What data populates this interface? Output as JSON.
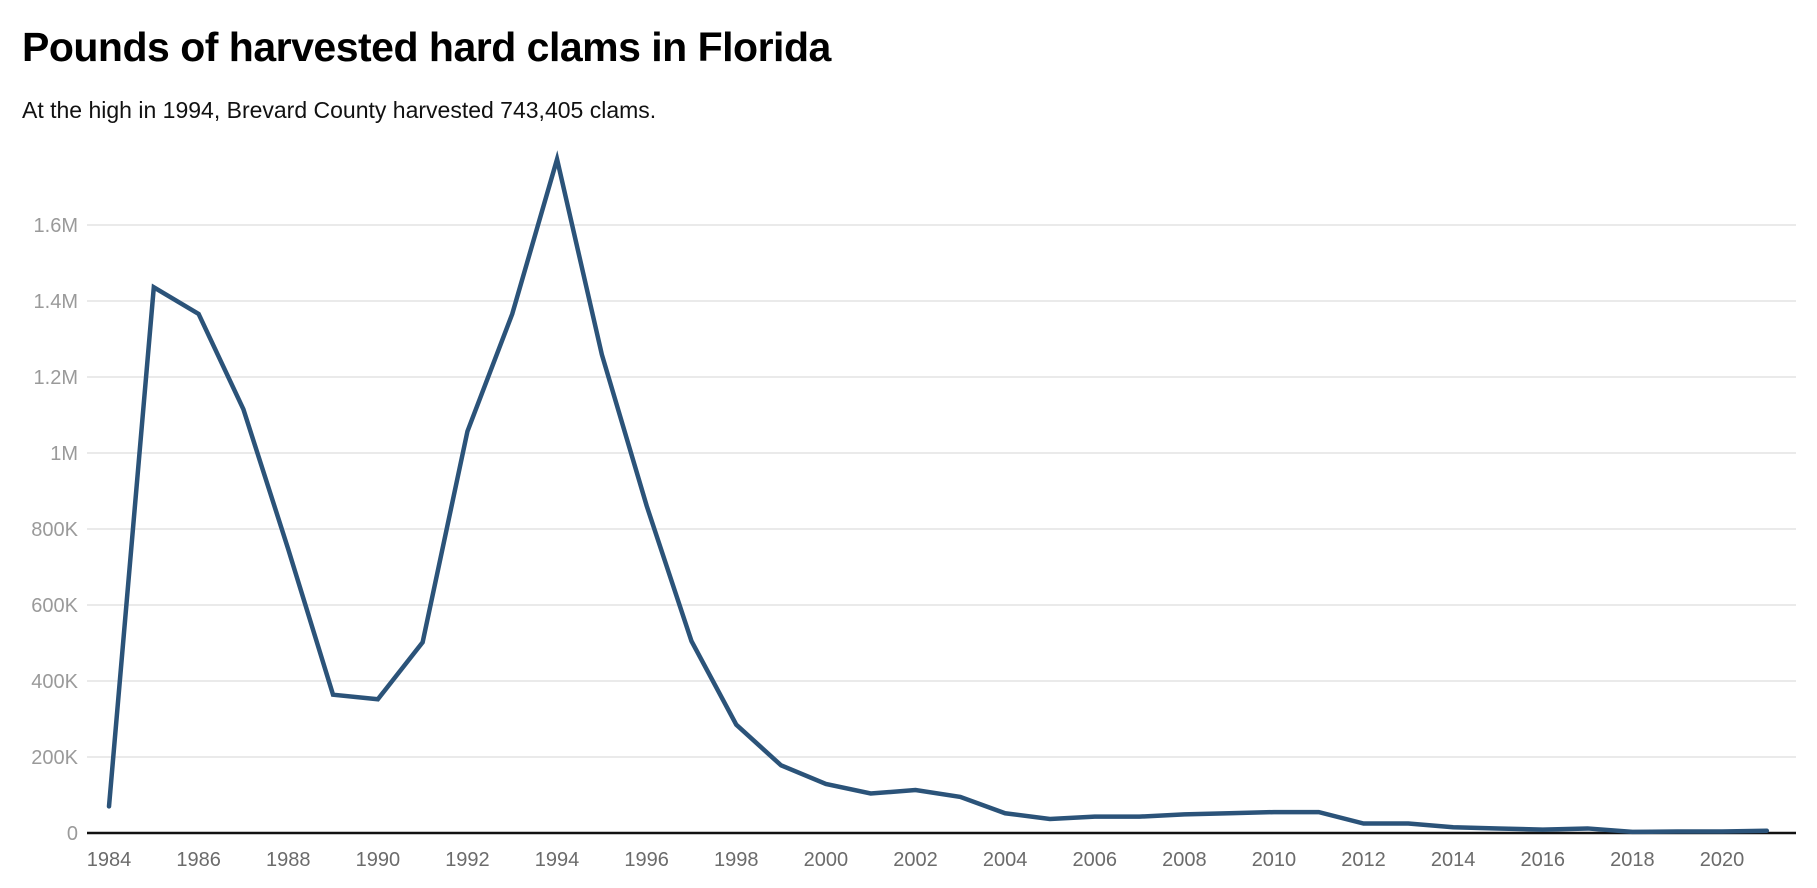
{
  "chart_data": {
    "type": "line",
    "title": "Pounds of harvested hard clams in Florida",
    "subtitle": "At the high in 1994, Brevard County harvested 743,405 clams.",
    "xlabel": "",
    "ylabel": "",
    "ylim": [
      0,
      1600000
    ],
    "grid": true,
    "line_color": "#2b5379",
    "y_ticks": [
      {
        "value": 0,
        "label": "0"
      },
      {
        "value": 200000,
        "label": "200K"
      },
      {
        "value": 400000,
        "label": "400K"
      },
      {
        "value": 600000,
        "label": "600K"
      },
      {
        "value": 800000,
        "label": "800K"
      },
      {
        "value": 1000000,
        "label": "1M"
      },
      {
        "value": 1200000,
        "label": "1.2M"
      },
      {
        "value": 1400000,
        "label": "1.4M"
      },
      {
        "value": 1600000,
        "label": "1.6M"
      }
    ],
    "x_ticks": [
      "1984",
      "1986",
      "1988",
      "1990",
      "1992",
      "1994",
      "1996",
      "1998",
      "2000",
      "2002",
      "2004",
      "2006",
      "2008",
      "2010",
      "2012",
      "2014",
      "2016",
      "2018",
      "2020"
    ],
    "x": [
      1984,
      1985,
      1986,
      1987,
      1988,
      1989,
      1990,
      1991,
      1992,
      1993,
      1994,
      1995,
      1996,
      1997,
      1998,
      1999,
      2000,
      2001,
      2002,
      2003,
      2004,
      2005,
      2006,
      2007,
      2008,
      2009,
      2010,
      2011,
      2012,
      2013,
      2014,
      2015,
      2016,
      2017,
      2018,
      2019,
      2020,
      2021
    ],
    "series": [
      {
        "name": "Pounds harvested",
        "values": [
          70000,
          1436000,
          1366000,
          1115000,
          747000,
          364000,
          352000,
          502000,
          1057000,
          1366000,
          1773000,
          1259000,
          861000,
          505000,
          285000,
          178000,
          129000,
          104000,
          113000,
          95000,
          52000,
          37000,
          43000,
          43000,
          49000,
          52000,
          55000,
          55000,
          25000,
          25000,
          15000,
          12000,
          9000,
          12000,
          3000,
          4000,
          4000,
          6000
        ]
      }
    ]
  }
}
